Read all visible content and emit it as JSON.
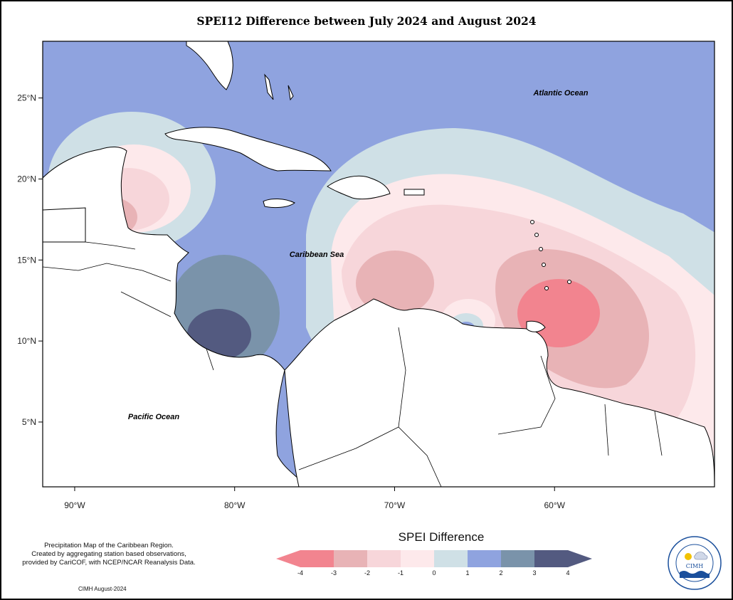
{
  "title": "SPEI12 Difference between July 2024 and August 2024",
  "map": {
    "x_ticks": [
      {
        "lon": -90,
        "label": "90°W"
      },
      {
        "lon": -80,
        "label": "80°W"
      },
      {
        "lon": -70,
        "label": "70°W"
      },
      {
        "lon": -60,
        "label": "60°W"
      }
    ],
    "y_ticks": [
      {
        "lat": 25,
        "label": "25°N"
      },
      {
        "lat": 20,
        "label": "20°N"
      },
      {
        "lat": 15,
        "label": "15°N"
      },
      {
        "lat": 10,
        "label": "10°N"
      },
      {
        "lat": 5,
        "label": "5°N"
      }
    ],
    "lon_range": [
      -92,
      -50
    ],
    "lat_range": [
      1,
      28.5
    ],
    "labels": {
      "atlantic": "Atlantic Ocean",
      "caribbean": "Caribbean Sea",
      "pacific": "Pacific Ocean"
    },
    "background_color": "#8fa3df"
  },
  "legend": {
    "title": "SPEI Difference",
    "tick_labels": [
      "-4",
      "-3",
      "-2",
      "-1",
      "0",
      "1",
      "2",
      "3",
      "4"
    ],
    "colors": [
      "#f2848f",
      "#e8b3b6",
      "#f7d6da",
      "#fde9eb",
      "#cfe0e6",
      "#8fa3df",
      "#7a93aa",
      "#535a80"
    ]
  },
  "source_note": "Precipitation Map of the Caribbean Region.\nCreated by aggregating station based observations,\nprovided by CariCOF, with NCEP/NCAR Reanalysis Data.",
  "credit": "CIMH August-2024",
  "logo": {
    "text": "CIMH",
    "ring_text": "Caribbean Institute for Meteorology and Hydrology",
    "icon": "cimh-logo-icon"
  }
}
